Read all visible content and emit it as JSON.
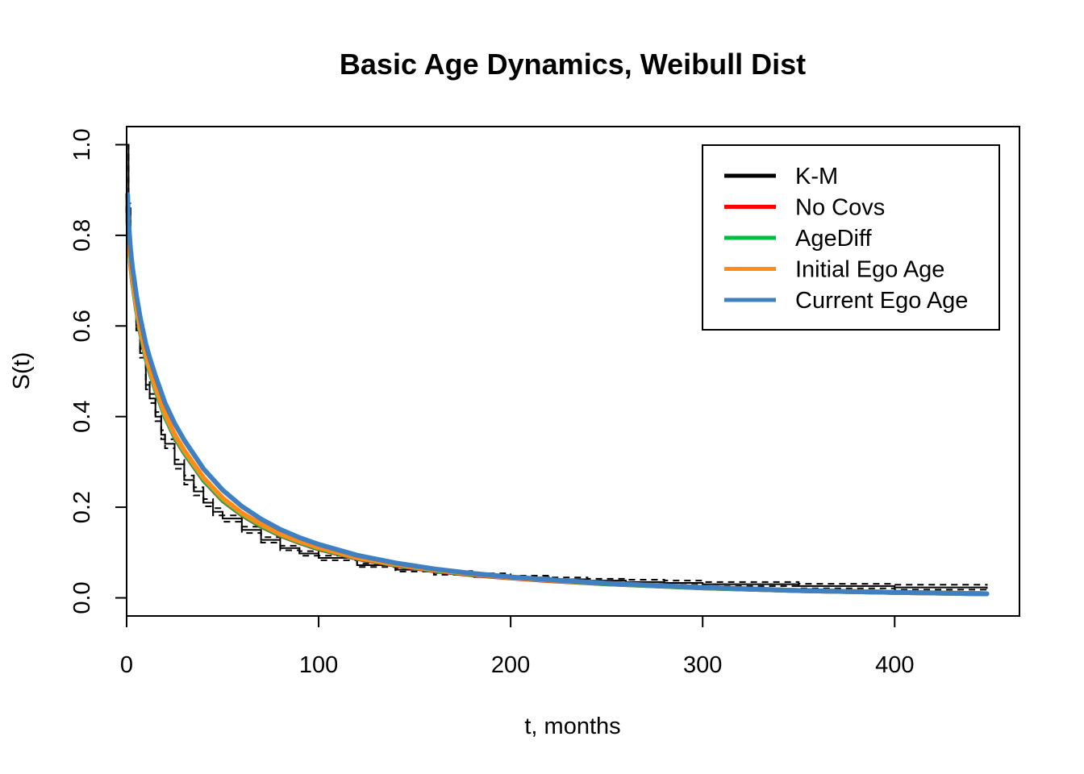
{
  "chart_data": {
    "type": "line",
    "title": "Basic Age Dynamics, Weibull Dist",
    "xlabel": "t, months",
    "ylabel": "S(t)",
    "xlim": [
      0,
      465
    ],
    "ylim": [
      -0.04,
      1.04
    ],
    "x_ticks": [
      0,
      100,
      200,
      300,
      400
    ],
    "y_ticks": [
      0.0,
      0.2,
      0.4,
      0.6,
      0.8,
      1.0
    ],
    "x_tick_labels": [
      "0",
      "100",
      "200",
      "300",
      "400"
    ],
    "y_tick_labels": [
      "0.0",
      "0.2",
      "0.4",
      "0.6",
      "0.8",
      "1.0"
    ],
    "grid": false,
    "legend_position": "top-right",
    "series": [
      {
        "name": "K-M",
        "color": "#000000",
        "style": "step",
        "x": [
          0,
          1,
          2,
          3,
          5,
          7,
          10,
          12,
          15,
          18,
          20,
          25,
          30,
          35,
          40,
          45,
          50,
          60,
          70,
          80,
          90,
          100,
          120,
          140,
          160,
          180,
          200,
          220,
          240,
          260,
          280,
          300,
          350,
          400,
          448
        ],
        "y": [
          1.0,
          0.86,
          0.75,
          0.68,
          0.6,
          0.54,
          0.47,
          0.44,
          0.4,
          0.36,
          0.34,
          0.295,
          0.26,
          0.235,
          0.21,
          0.19,
          0.175,
          0.15,
          0.128,
          0.11,
          0.098,
          0.088,
          0.072,
          0.062,
          0.055,
          0.05,
          0.045,
          0.041,
          0.038,
          0.035,
          0.033,
          0.03,
          0.026,
          0.023,
          0.02
        ],
        "ci_lower": [
          1.0,
          0.85,
          0.74,
          0.67,
          0.59,
          0.53,
          0.46,
          0.43,
          0.39,
          0.35,
          0.33,
          0.285,
          0.25,
          0.226,
          0.202,
          0.182,
          0.168,
          0.143,
          0.122,
          0.105,
          0.093,
          0.083,
          0.068,
          0.058,
          0.051,
          0.046,
          0.041,
          0.037,
          0.034,
          0.031,
          0.029,
          0.026,
          0.021,
          0.018,
          0.014
        ],
        "ci_upper": [
          1.0,
          0.87,
          0.76,
          0.69,
          0.61,
          0.55,
          0.48,
          0.45,
          0.41,
          0.37,
          0.35,
          0.305,
          0.27,
          0.244,
          0.218,
          0.198,
          0.182,
          0.157,
          0.134,
          0.115,
          0.103,
          0.093,
          0.076,
          0.066,
          0.059,
          0.054,
          0.049,
          0.045,
          0.042,
          0.04,
          0.038,
          0.035,
          0.031,
          0.029,
          0.027
        ]
      },
      {
        "name": "No Covs",
        "color": "#ff0000",
        "x": [
          0.5,
          1,
          2,
          3,
          5,
          7,
          10,
          12,
          15,
          20,
          25,
          30,
          40,
          50,
          60,
          70,
          80,
          90,
          100,
          120,
          140,
          160,
          180,
          200,
          220,
          250,
          300,
          350,
          400,
          448
        ],
        "y": [
          0.86,
          0.8,
          0.74,
          0.7,
          0.64,
          0.59,
          0.53,
          0.5,
          0.46,
          0.4,
          0.355,
          0.32,
          0.26,
          0.215,
          0.183,
          0.158,
          0.138,
          0.122,
          0.108,
          0.087,
          0.072,
          0.06,
          0.051,
          0.044,
          0.038,
          0.031,
          0.022,
          0.016,
          0.012,
          0.009
        ]
      },
      {
        "name": "AgeDiff",
        "color": "#00bf40",
        "x": [
          0.5,
          1,
          2,
          3,
          5,
          7,
          10,
          12,
          15,
          20,
          25,
          30,
          40,
          50,
          60,
          70,
          80,
          90,
          100,
          120,
          140,
          160,
          180,
          200,
          220,
          250,
          300,
          350,
          400,
          448
        ],
        "y": [
          0.86,
          0.8,
          0.74,
          0.7,
          0.64,
          0.59,
          0.53,
          0.5,
          0.46,
          0.4,
          0.356,
          0.321,
          0.261,
          0.216,
          0.184,
          0.159,
          0.139,
          0.123,
          0.109,
          0.088,
          0.073,
          0.061,
          0.052,
          0.045,
          0.039,
          0.031,
          0.022,
          0.016,
          0.012,
          0.009
        ]
      },
      {
        "name": "Initial Ego Age",
        "color": "#ff8c1a",
        "x": [
          0.5,
          1,
          2,
          3,
          5,
          7,
          10,
          12,
          15,
          20,
          25,
          30,
          40,
          50,
          60,
          70,
          80,
          90,
          100,
          120,
          140,
          160,
          180,
          200,
          220,
          250,
          300,
          350,
          400,
          448
        ],
        "y": [
          0.865,
          0.805,
          0.745,
          0.705,
          0.645,
          0.595,
          0.535,
          0.505,
          0.465,
          0.405,
          0.36,
          0.325,
          0.265,
          0.22,
          0.187,
          0.162,
          0.141,
          0.125,
          0.111,
          0.089,
          0.074,
          0.062,
          0.053,
          0.045,
          0.039,
          0.032,
          0.023,
          0.016,
          0.012,
          0.009
        ]
      },
      {
        "name": "Current Ego Age",
        "color": "#4080c0",
        "x": [
          0.5,
          1,
          2,
          3,
          5,
          7,
          10,
          12,
          15,
          20,
          25,
          30,
          40,
          50,
          60,
          70,
          80,
          90,
          100,
          120,
          140,
          160,
          180,
          200,
          220,
          250,
          300,
          350,
          400,
          448
        ],
        "y": [
          0.89,
          0.83,
          0.77,
          0.73,
          0.67,
          0.62,
          0.56,
          0.53,
          0.49,
          0.43,
          0.385,
          0.348,
          0.285,
          0.238,
          0.202,
          0.174,
          0.151,
          0.133,
          0.118,
          0.094,
          0.077,
          0.064,
          0.054,
          0.046,
          0.04,
          0.032,
          0.023,
          0.016,
          0.012,
          0.009
        ]
      }
    ]
  }
}
